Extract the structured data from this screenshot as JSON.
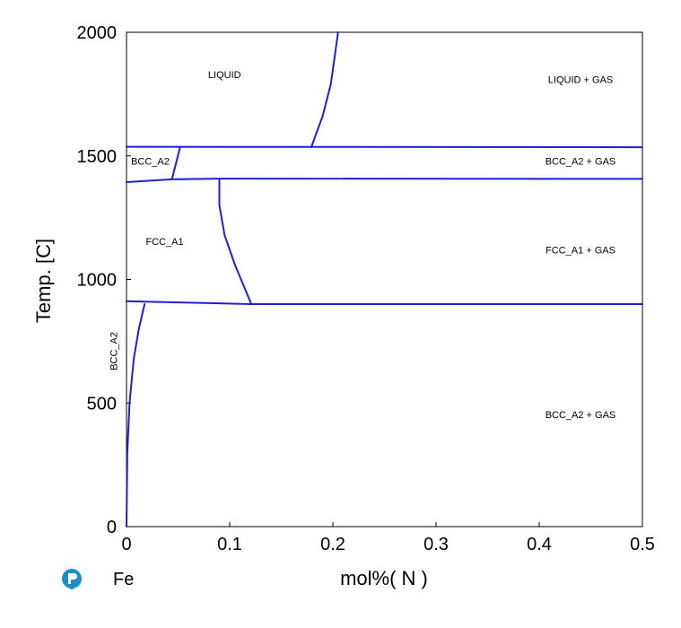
{
  "chart_data": {
    "type": "line",
    "title": "",
    "xlabel": "mol%( N )",
    "ylabel": "Temp. [C]",
    "element_label": "Fe",
    "xlim": [
      0,
      0.5
    ],
    "ylim": [
      0,
      2000
    ],
    "x_ticks": [
      0,
      0.1,
      0.2,
      0.3,
      0.4,
      0.5
    ],
    "x_tick_labels": [
      "0",
      "0.1",
      "0.2",
      "0.3",
      "0.4",
      "0.5"
    ],
    "y_ticks": [
      0,
      500,
      1000,
      1500,
      2000
    ],
    "y_tick_labels": [
      "0",
      "500",
      "1000",
      "1500",
      "2000"
    ],
    "grid": false,
    "line_color": "#1f1fd6",
    "logo_color": "#1a8fc9",
    "series": [
      {
        "points": [
          [
            0.179,
            1535
          ],
          [
            0.19,
            1660
          ],
          [
            0.198,
            1790
          ],
          [
            0.205,
            2000
          ]
        ]
      },
      {
        "points": [
          [
            0,
            1537
          ],
          [
            0.5,
            1535
          ]
        ]
      },
      {
        "points": [
          [
            0.052,
            1537
          ],
          [
            0.048,
            1470
          ],
          [
            0.044,
            1405
          ]
        ]
      },
      {
        "points": [
          [
            0,
            1394
          ],
          [
            0.044,
            1405
          ],
          [
            0.09,
            1408
          ],
          [
            0.5,
            1407
          ]
        ]
      },
      {
        "points": [
          [
            0.09,
            1408
          ],
          [
            0.09,
            1300
          ],
          [
            0.095,
            1180
          ],
          [
            0.105,
            1060
          ],
          [
            0.121,
            900
          ]
        ]
      },
      {
        "points": [
          [
            0,
            912
          ],
          [
            0.121,
            900
          ],
          [
            0.5,
            900
          ]
        ]
      },
      {
        "points": [
          [
            0.0175,
            900
          ],
          [
            0.012,
            800
          ],
          [
            0.007,
            680
          ],
          [
            0.003,
            500
          ],
          [
            0.0008,
            300
          ],
          [
            0,
            0
          ]
        ]
      }
    ],
    "region_labels": [
      {
        "text": "LIQUID",
        "x": 0.095,
        "y": 1815
      },
      {
        "text": "LIQUID + GAS",
        "x": 0.44,
        "y": 1795
      },
      {
        "text": "BCC_A2",
        "x": 0.023,
        "y": 1465
      },
      {
        "text": "BCC_A2 + GAS",
        "x": 0.44,
        "y": 1465
      },
      {
        "text": "FCC_A1",
        "x": 0.037,
        "y": 1140
      },
      {
        "text": "FCC_A1 + GAS",
        "x": 0.44,
        "y": 1105
      },
      {
        "text": "BCC_A2",
        "x": -0.009,
        "y": 710,
        "rotate": -90
      },
      {
        "text": "BCC_A2 + GAS",
        "x": 0.44,
        "y": 440
      }
    ]
  }
}
